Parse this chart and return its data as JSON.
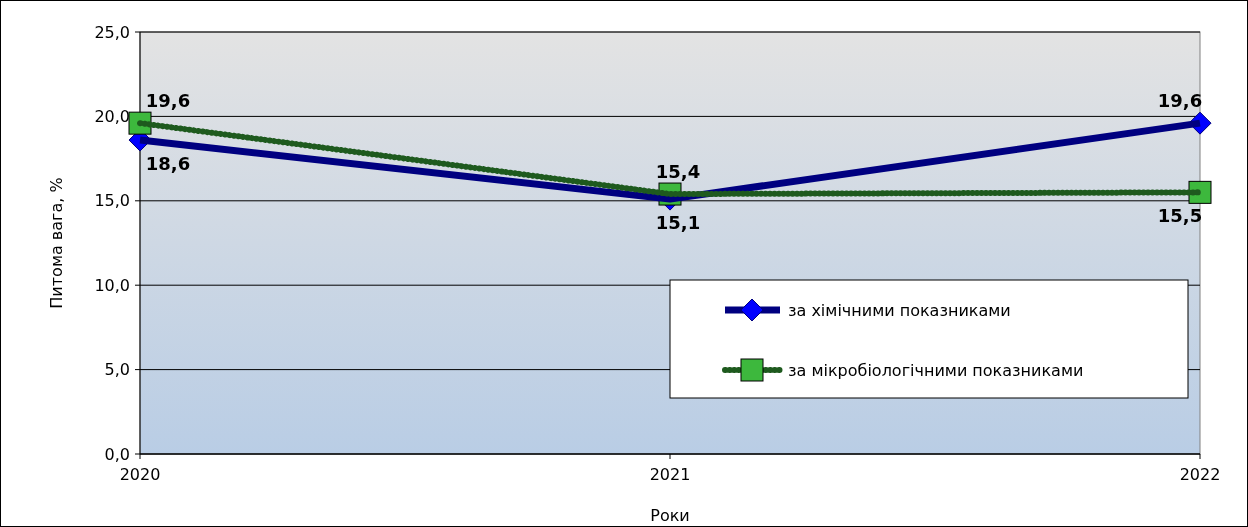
{
  "chart_data": {
    "type": "line",
    "xlabel": "Роки",
    "ylabel": "Питома  вага, %",
    "categories": [
      "2020",
      "2021",
      "2022"
    ],
    "series": [
      {
        "name": "за хімічними показниками",
        "color": "#000080",
        "marker": "diamond",
        "line_style": "solid",
        "values": [
          18.6,
          15.1,
          19.6
        ],
        "value_labels": [
          "18,6",
          "15,1",
          "19,6"
        ]
      },
      {
        "name": "за мікробіологічними показниками",
        "color": "#1e5a1e",
        "marker": "square",
        "line_style": "dotted",
        "values": [
          19.6,
          15.4,
          15.5
        ],
        "value_labels": [
          "19,6",
          "15,4",
          "15,5"
        ]
      }
    ],
    "ylim": [
      0,
      25
    ],
    "yticks": [
      {
        "value": 0,
        "label": "0,0"
      },
      {
        "value": 5,
        "label": "5,0"
      },
      {
        "value": 10,
        "label": "10,0"
      },
      {
        "value": 15,
        "label": "15,0"
      },
      {
        "value": 20,
        "label": "20,0"
      },
      {
        "value": 25,
        "label": "25,0"
      }
    ],
    "grid": "y",
    "legend": "bottom right"
  }
}
